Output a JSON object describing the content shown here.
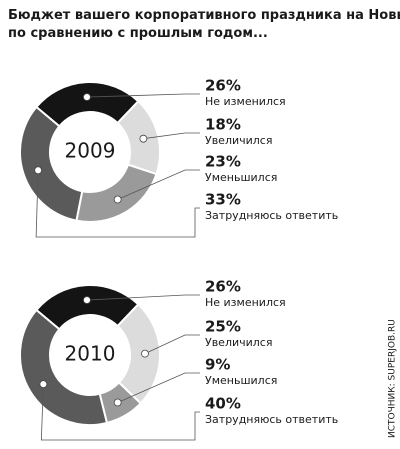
{
  "title": "Бюджет вашего корпоративного праздника на Новый год по сравнению с прошлым годом...",
  "source": "ИСТОЧНИК: SUPERJOB.RU",
  "chart_data": [
    {
      "type": "pie",
      "center_label": "2009",
      "categories": [
        "Не изменился",
        "Увеличился",
        "Уменьшился",
        "Затрудняюсь ответить"
      ],
      "values": [
        26,
        18,
        23,
        33
      ],
      "value_labels": [
        "26%",
        "18%",
        "23%",
        "33%"
      ],
      "colors": [
        "#141414",
        "#dcdcdc",
        "#9a9a9a",
        "#5a5a5a"
      ]
    },
    {
      "type": "pie",
      "center_label": "2010",
      "categories": [
        "Не изменился",
        "Увеличился",
        "Уменьшился",
        "Затрудняюсь ответить"
      ],
      "values": [
        26,
        25,
        9,
        40
      ],
      "value_labels": [
        "26%",
        "25%",
        "9%",
        "40%"
      ],
      "colors": [
        "#141414",
        "#dcdcdc",
        "#9a9a9a",
        "#5a5a5a"
      ]
    }
  ]
}
